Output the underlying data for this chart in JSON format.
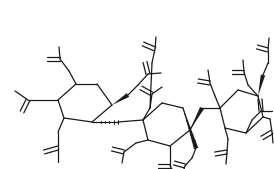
{
  "bg_color": "#ffffff",
  "line_color": "#1a1a1a",
  "lw": 0.9,
  "figsize": [
    2.74,
    1.69
  ],
  "dpi": 100
}
